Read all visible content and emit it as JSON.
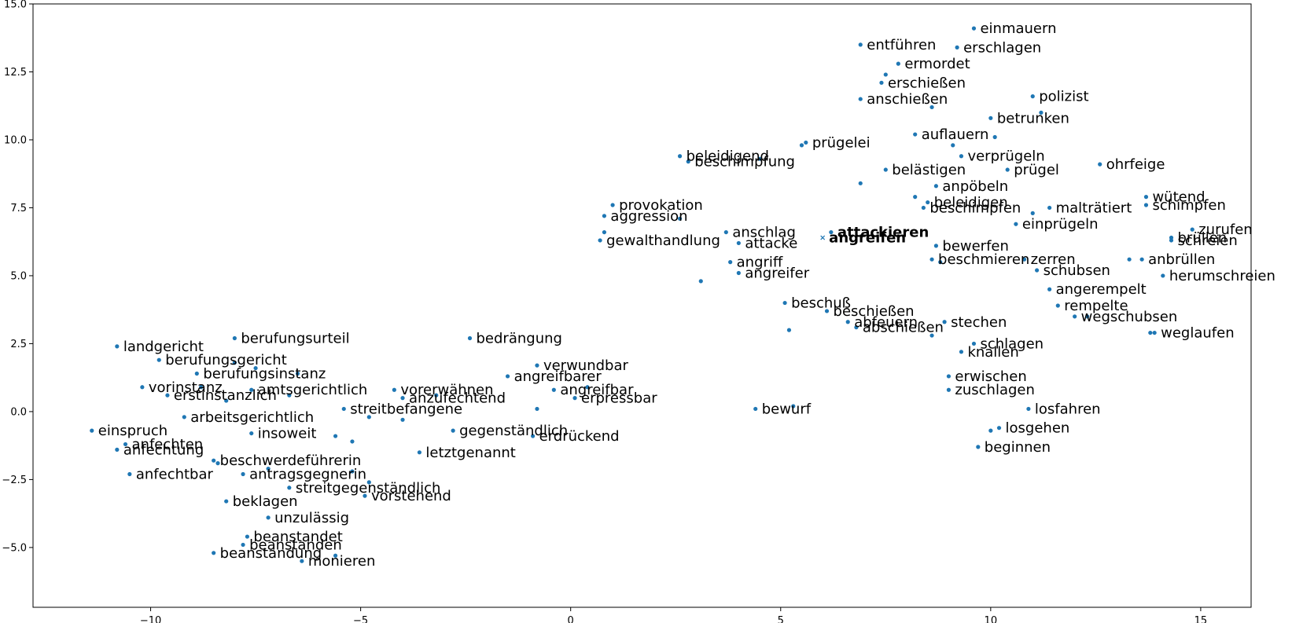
{
  "chart_data": {
    "type": "scatter",
    "title": "",
    "xlabel": "",
    "ylabel": "",
    "xlim": [
      -12.8,
      16.2
    ],
    "ylim": [
      -7.2,
      15.0
    ],
    "xticks": [
      -10,
      -5,
      0,
      5,
      10,
      15
    ],
    "yticks": [
      -5.0,
      -2.5,
      0.0,
      2.5,
      5.0,
      7.5,
      10.0,
      12.5,
      15.0
    ],
    "grid": false,
    "point_color": "#1f77b4",
    "points": [
      {
        "label": "einmauern",
        "x": 9.6,
        "y": 14.1
      },
      {
        "label": "entführen",
        "x": 6.9,
        "y": 13.5
      },
      {
        "label": "erschlagen",
        "x": 9.2,
        "y": 13.4
      },
      {
        "label": "ermordet",
        "x": 7.8,
        "y": 12.8
      },
      {
        "label": "erschießen",
        "x": 7.4,
        "y": 12.1
      },
      {
        "label": "",
        "x": 7.5,
        "y": 12.4
      },
      {
        "label": "anschießen",
        "x": 6.9,
        "y": 11.5
      },
      {
        "label": "",
        "x": 8.6,
        "y": 11.2
      },
      {
        "label": "polizist",
        "x": 11.0,
        "y": 11.6
      },
      {
        "label": "betrunken",
        "x": 10.0,
        "y": 10.8
      },
      {
        "label": "",
        "x": 10.1,
        "y": 10.1
      },
      {
        "label": "",
        "x": 11.2,
        "y": 11.0
      },
      {
        "label": "prügelei",
        "x": 5.6,
        "y": 9.9
      },
      {
        "label": "",
        "x": 5.5,
        "y": 9.8
      },
      {
        "label": "auflauern",
        "x": 8.2,
        "y": 10.2
      },
      {
        "label": "verprügeln",
        "x": 9.3,
        "y": 9.4
      },
      {
        "label": "",
        "x": 9.1,
        "y": 9.8
      },
      {
        "label": "beleidigend",
        "x": 2.6,
        "y": 9.4
      },
      {
        "label": "beschimpfung",
        "x": 2.8,
        "y": 9.2
      },
      {
        "label": "",
        "x": 4.5,
        "y": 9.3
      },
      {
        "label": "prügel",
        "x": 10.4,
        "y": 8.9
      },
      {
        "label": "ohrfeige",
        "x": 12.6,
        "y": 9.1
      },
      {
        "label": "belästigen",
        "x": 7.5,
        "y": 8.9
      },
      {
        "label": "anpöbeln",
        "x": 8.7,
        "y": 8.3
      },
      {
        "label": "",
        "x": 6.9,
        "y": 8.4
      },
      {
        "label": "beleidigen",
        "x": 8.5,
        "y": 7.7
      },
      {
        "label": "",
        "x": 8.2,
        "y": 7.9
      },
      {
        "label": "beschimpfen",
        "x": 8.4,
        "y": 7.5
      },
      {
        "label": "malträtiert",
        "x": 11.4,
        "y": 7.5
      },
      {
        "label": "",
        "x": 11.0,
        "y": 7.3
      },
      {
        "label": "wütend",
        "x": 13.7,
        "y": 7.9
      },
      {
        "label": "schimpfen",
        "x": 13.7,
        "y": 7.6
      },
      {
        "label": "provokation",
        "x": 1.0,
        "y": 7.6
      },
      {
        "label": "aggression",
        "x": 0.8,
        "y": 7.2
      },
      {
        "label": "",
        "x": 2.6,
        "y": 7.1
      },
      {
        "label": "einprügeln",
        "x": 10.6,
        "y": 6.9
      },
      {
        "label": "zurufen",
        "x": 14.8,
        "y": 6.7
      },
      {
        "label": "anschlag",
        "x": 3.7,
        "y": 6.6
      },
      {
        "label": "attackieren",
        "x": 6.2,
        "y": 6.6,
        "bold": true
      },
      {
        "label": "angreifen",
        "x": 6.0,
        "y": 6.4,
        "bold": true,
        "marker": "x"
      },
      {
        "label": "gewalthandlung",
        "x": 0.7,
        "y": 6.3
      },
      {
        "label": "",
        "x": 0.8,
        "y": 6.6
      },
      {
        "label": "attacke",
        "x": 4.0,
        "y": 6.2
      },
      {
        "label": "brüllen",
        "x": 14.3,
        "y": 6.4
      },
      {
        "label": "schreien",
        "x": 14.3,
        "y": 6.3
      },
      {
        "label": "bewerfen",
        "x": 8.7,
        "y": 6.1
      },
      {
        "label": "zerren",
        "x": 10.8,
        "y": 5.6
      },
      {
        "label": "beschmieren",
        "x": 8.6,
        "y": 5.6
      },
      {
        "label": "",
        "x": 8.8,
        "y": 5.5
      },
      {
        "label": "anbrüllen",
        "x": 13.6,
        "y": 5.6
      },
      {
        "label": "",
        "x": 13.3,
        "y": 5.6
      },
      {
        "label": "angriff",
        "x": 3.8,
        "y": 5.5
      },
      {
        "label": "schubsen",
        "x": 11.1,
        "y": 5.2
      },
      {
        "label": "angreifer",
        "x": 4.0,
        "y": 5.1
      },
      {
        "label": "herumschreien",
        "x": 14.1,
        "y": 5.0
      },
      {
        "label": "",
        "x": 3.1,
        "y": 4.8
      },
      {
        "label": "angerempelt",
        "x": 11.4,
        "y": 4.5
      },
      {
        "label": "beschuß",
        "x": 5.1,
        "y": 4.0
      },
      {
        "label": "rempelte",
        "x": 11.6,
        "y": 3.9
      },
      {
        "label": "beschießen",
        "x": 6.1,
        "y": 3.7
      },
      {
        "label": "wegschubsen",
        "x": 12.0,
        "y": 3.5
      },
      {
        "label": "",
        "x": 12.3,
        "y": 3.5
      },
      {
        "label": "abfeuern",
        "x": 6.6,
        "y": 3.3
      },
      {
        "label": "stechen",
        "x": 8.9,
        "y": 3.3
      },
      {
        "label": "weglaufen",
        "x": 13.9,
        "y": 2.9
      },
      {
        "label": "",
        "x": 13.8,
        "y": 2.9
      },
      {
        "label": "abschießen",
        "x": 6.8,
        "y": 3.1
      },
      {
        "label": "",
        "x": 5.2,
        "y": 3.0
      },
      {
        "label": "",
        "x": 8.6,
        "y": 2.8
      },
      {
        "label": "schlagen",
        "x": 9.6,
        "y": 2.5
      },
      {
        "label": "knallen",
        "x": 9.3,
        "y": 2.2
      },
      {
        "label": "landgericht",
        "x": -10.8,
        "y": 2.4
      },
      {
        "label": "berufungsurteil",
        "x": -8.0,
        "y": 2.7
      },
      {
        "label": "bedrängung",
        "x": -2.4,
        "y": 2.7
      },
      {
        "label": "berufungsgericht",
        "x": -9.8,
        "y": 1.9
      },
      {
        "label": "",
        "x": -8.0,
        "y": 1.8
      },
      {
        "label": "berufungsinstanz",
        "x": -8.9,
        "y": 1.4
      },
      {
        "label": "",
        "x": -7.5,
        "y": 1.6
      },
      {
        "label": "",
        "x": -6.5,
        "y": 1.4
      },
      {
        "label": "verwundbar",
        "x": -0.8,
        "y": 1.7
      },
      {
        "label": "angreifbarer",
        "x": -1.5,
        "y": 1.3
      },
      {
        "label": "erwischen",
        "x": 9.0,
        "y": 1.3
      },
      {
        "label": "vorinstanz",
        "x": -10.2,
        "y": 0.9
      },
      {
        "label": "",
        "x": -8.8,
        "y": 0.9
      },
      {
        "label": "amtsgerichtlich",
        "x": -7.6,
        "y": 0.8
      },
      {
        "label": "",
        "x": -6.7,
        "y": 0.6
      },
      {
        "label": "vorerwähnen",
        "x": -4.2,
        "y": 0.8
      },
      {
        "label": "angreifbar",
        "x": -0.4,
        "y": 0.8
      },
      {
        "label": "",
        "x": 0.4,
        "y": 0.9
      },
      {
        "label": "zuschlagen",
        "x": 9.0,
        "y": 0.8
      },
      {
        "label": "erstinstanzlich",
        "x": -9.6,
        "y": 0.6
      },
      {
        "label": "",
        "x": -8.2,
        "y": 0.4
      },
      {
        "label": "anzufechtend",
        "x": -4.0,
        "y": 0.5
      },
      {
        "label": "",
        "x": -3.2,
        "y": 0.6
      },
      {
        "label": "erpressbar",
        "x": 0.1,
        "y": 0.5
      },
      {
        "label": "losfahren",
        "x": 10.9,
        "y": 0.1
      },
      {
        "label": "streitbefangene",
        "x": -5.4,
        "y": 0.1
      },
      {
        "label": "",
        "x": -4.8,
        "y": -0.2
      },
      {
        "label": "",
        "x": -4.0,
        "y": -0.3
      },
      {
        "label": "bewurf",
        "x": 4.4,
        "y": 0.1
      },
      {
        "label": "",
        "x": 5.3,
        "y": 0.2
      },
      {
        "label": "arbeitsgerichtlich",
        "x": -9.2,
        "y": -0.2
      },
      {
        "label": "gegenständlich",
        "x": -2.8,
        "y": -0.7
      },
      {
        "label": "",
        "x": -0.8,
        "y": 0.1
      },
      {
        "label": "einspruch",
        "x": -11.4,
        "y": -0.7
      },
      {
        "label": "insoweit",
        "x": -7.6,
        "y": -0.8
      },
      {
        "label": "",
        "x": -5.6,
        "y": -0.9
      },
      {
        "label": "",
        "x": -5.2,
        "y": -1.1
      },
      {
        "label": "erdrückend",
        "x": -0.9,
        "y": -0.9
      },
      {
        "label": "losgehen",
        "x": 10.2,
        "y": -0.6
      },
      {
        "label": "",
        "x": 10.0,
        "y": -0.7
      },
      {
        "label": "anfechten",
        "x": -10.6,
        "y": -1.2
      },
      {
        "label": "anfechtung",
        "x": -10.8,
        "y": -1.4
      },
      {
        "label": "beginnen",
        "x": 9.7,
        "y": -1.3
      },
      {
        "label": "letztgenannt",
        "x": -3.6,
        "y": -1.5
      },
      {
        "label": "beschwerdeführerin",
        "x": -8.5,
        "y": -1.8
      },
      {
        "label": "",
        "x": -8.4,
        "y": -1.9
      },
      {
        "label": "anfechtbar",
        "x": -10.5,
        "y": -2.3
      },
      {
        "label": "antragsgegnerin",
        "x": -7.8,
        "y": -2.3
      },
      {
        "label": "",
        "x": -7.2,
        "y": -2.1
      },
      {
        "label": "",
        "x": -5.2,
        "y": -2.2
      },
      {
        "label": "streitgegenständlich",
        "x": -6.7,
        "y": -2.8
      },
      {
        "label": "",
        "x": -4.8,
        "y": -2.6
      },
      {
        "label": "vorstehend",
        "x": -4.9,
        "y": -3.1
      },
      {
        "label": "beklagen",
        "x": -8.2,
        "y": -3.3
      },
      {
        "label": "unzulässig",
        "x": -7.2,
        "y": -3.9
      },
      {
        "label": "beanstandet",
        "x": -7.7,
        "y": -4.6
      },
      {
        "label": "beanstanden",
        "x": -7.8,
        "y": -4.9
      },
      {
        "label": "beanstandung",
        "x": -8.5,
        "y": -5.2
      },
      {
        "label": "monieren",
        "x": -6.4,
        "y": -5.5
      },
      {
        "label": "",
        "x": -5.6,
        "y": -5.3
      }
    ]
  }
}
